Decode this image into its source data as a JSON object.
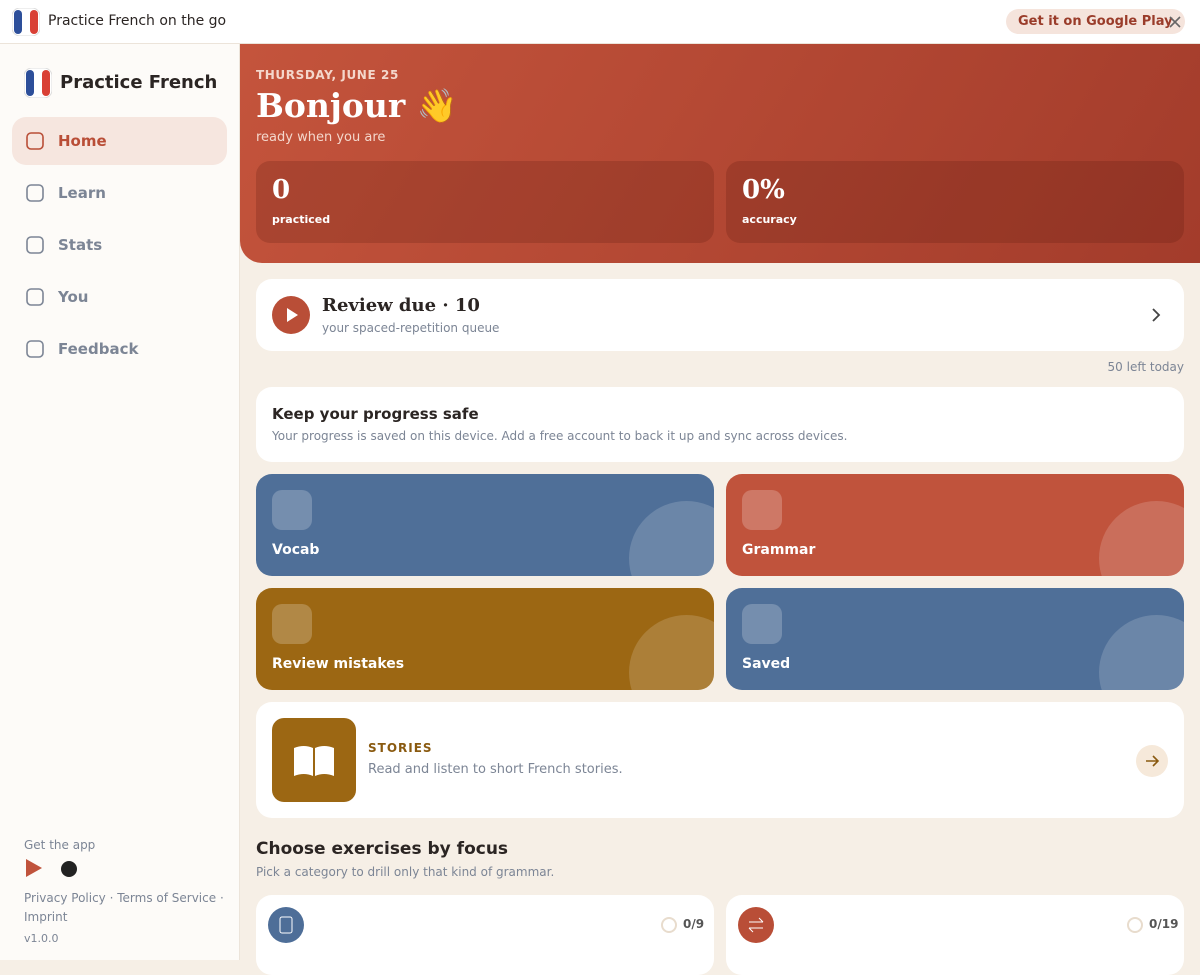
{
  "topbar": {
    "title": "Practice French on the go",
    "cta": "Get it on Google Play"
  },
  "sidebar": {
    "brand": "Practice French",
    "nav": [
      "Home",
      "Learn",
      "Stats",
      "You",
      "Feedback"
    ],
    "footer": {
      "heading": "Get the app",
      "links": [
        "Privacy Policy",
        "Terms of Service",
        "Imprint"
      ],
      "version": "v1.0.0"
    }
  },
  "hero": {
    "date": "THURSDAY, JUNE 25",
    "greeting": "Bonjour 👋",
    "subtitle": "ready when you are",
    "stats": [
      {
        "value": "0",
        "label": "practiced"
      },
      {
        "value": "0%",
        "label": "accuracy"
      }
    ]
  },
  "review": {
    "title": "Review due · 10",
    "subtitle": "your spaced-repetition queue",
    "remaining": "50 left today"
  },
  "notice": {
    "title": "Keep your progress safe",
    "text": "Your progress is saved on this device. Add a free account to back it up and sync across devices."
  },
  "tiles": [
    "Vocab",
    "Grammar",
    "Review mistakes",
    "Saved"
  ],
  "stories": {
    "title": "STORIES",
    "text": "Read and listen to short French stories."
  },
  "focus": {
    "title": "Choose exercises by focus",
    "subtitle": "Pick a category to drill only that kind of grammar.",
    "cards": [
      {
        "progress": "0/9"
      },
      {
        "progress": "0/19"
      }
    ]
  }
}
